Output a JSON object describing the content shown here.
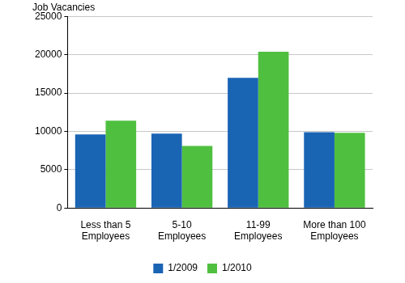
{
  "chart_data": {
    "type": "bar",
    "y_label": "Job Vacancies",
    "categories": [
      "Less than 5\nEmployees",
      "5-10\nEmployees",
      "11-99\nEmployees",
      "More than 100\nEmployees"
    ],
    "series": [
      {
        "name": "1/2009",
        "color": "#1a64b4",
        "values": [
          9600,
          9700,
          17000,
          9900
        ]
      },
      {
        "name": "1/2010",
        "color": "#4fbf3f",
        "values": [
          11400,
          8100,
          20400,
          9800
        ]
      }
    ],
    "ylim": [
      0,
      25000
    ],
    "yticks": [
      0,
      5000,
      10000,
      15000,
      20000,
      25000
    ],
    "grid": true,
    "legend": "bottom"
  }
}
